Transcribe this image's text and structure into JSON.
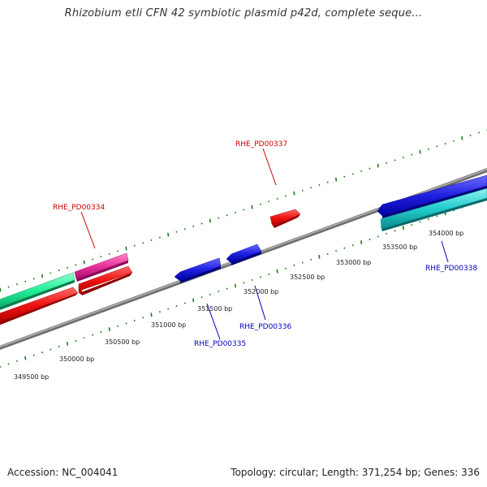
{
  "title": "Rhizobium etli CFN 42 symbiotic plasmid p42d, complete seque...",
  "footer": {
    "accession": "Accession: NC_004041",
    "summary": "Topology: circular; Length: 371,254 bp; Genes: 336"
  },
  "colors": {
    "backbone": "#888888",
    "tick": "#1a7a1a",
    "forward_label": "#cc0000",
    "reverse_label": "#0000bb",
    "red": "#ee1111",
    "magenta": "#e8309a",
    "green": "#22ee99",
    "blue": "#1f1fe0",
    "cyan": "#22cccc"
  },
  "bp_labels": [
    "349500 bp",
    "350000 bp",
    "350500 bp",
    "351000 bp",
    "351500 bp",
    "352000 bp",
    "352500 bp",
    "353000 bp",
    "353500 bp",
    "354000 bp"
  ],
  "gene_labels": [
    {
      "text": "RHE_PD00334",
      "strand": "forward"
    },
    {
      "text": "RHE_PD00337",
      "strand": "forward"
    },
    {
      "text": "RHE_PD00335",
      "strand": "reverse"
    },
    {
      "text": "RHE_PD00336",
      "strand": "reverse"
    },
    {
      "text": "RHE_PD00338",
      "strand": "reverse"
    }
  ]
}
